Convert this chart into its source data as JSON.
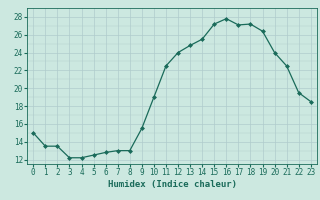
{
  "x": [
    0,
    1,
    2,
    3,
    4,
    5,
    6,
    7,
    8,
    9,
    10,
    11,
    12,
    13,
    14,
    15,
    16,
    17,
    18,
    19,
    20,
    21,
    22,
    23
  ],
  "y": [
    15.0,
    13.5,
    13.5,
    12.2,
    12.2,
    12.5,
    12.8,
    13.0,
    13.0,
    15.5,
    19.0,
    22.5,
    24.0,
    24.8,
    25.5,
    27.2,
    27.8,
    27.1,
    27.2,
    26.4,
    24.0,
    22.5,
    19.5,
    18.5
  ],
  "xlabel": "Humidex (Indice chaleur)",
  "ylabel": "",
  "ylim": [
    11.5,
    29.0
  ],
  "xlim": [
    -0.5,
    23.5
  ],
  "yticks": [
    12,
    14,
    16,
    18,
    20,
    22,
    24,
    26,
    28
  ],
  "xticks": [
    0,
    1,
    2,
    3,
    4,
    5,
    6,
    7,
    8,
    9,
    10,
    11,
    12,
    13,
    14,
    15,
    16,
    17,
    18,
    19,
    20,
    21,
    22,
    23
  ],
  "line_color": "#1a6b5a",
  "marker": "D",
  "marker_size": 2.0,
  "bg_color": "#cce8e0",
  "grid_color": "#b0cccc",
  "label_fontsize": 6.5,
  "tick_fontsize": 5.5
}
